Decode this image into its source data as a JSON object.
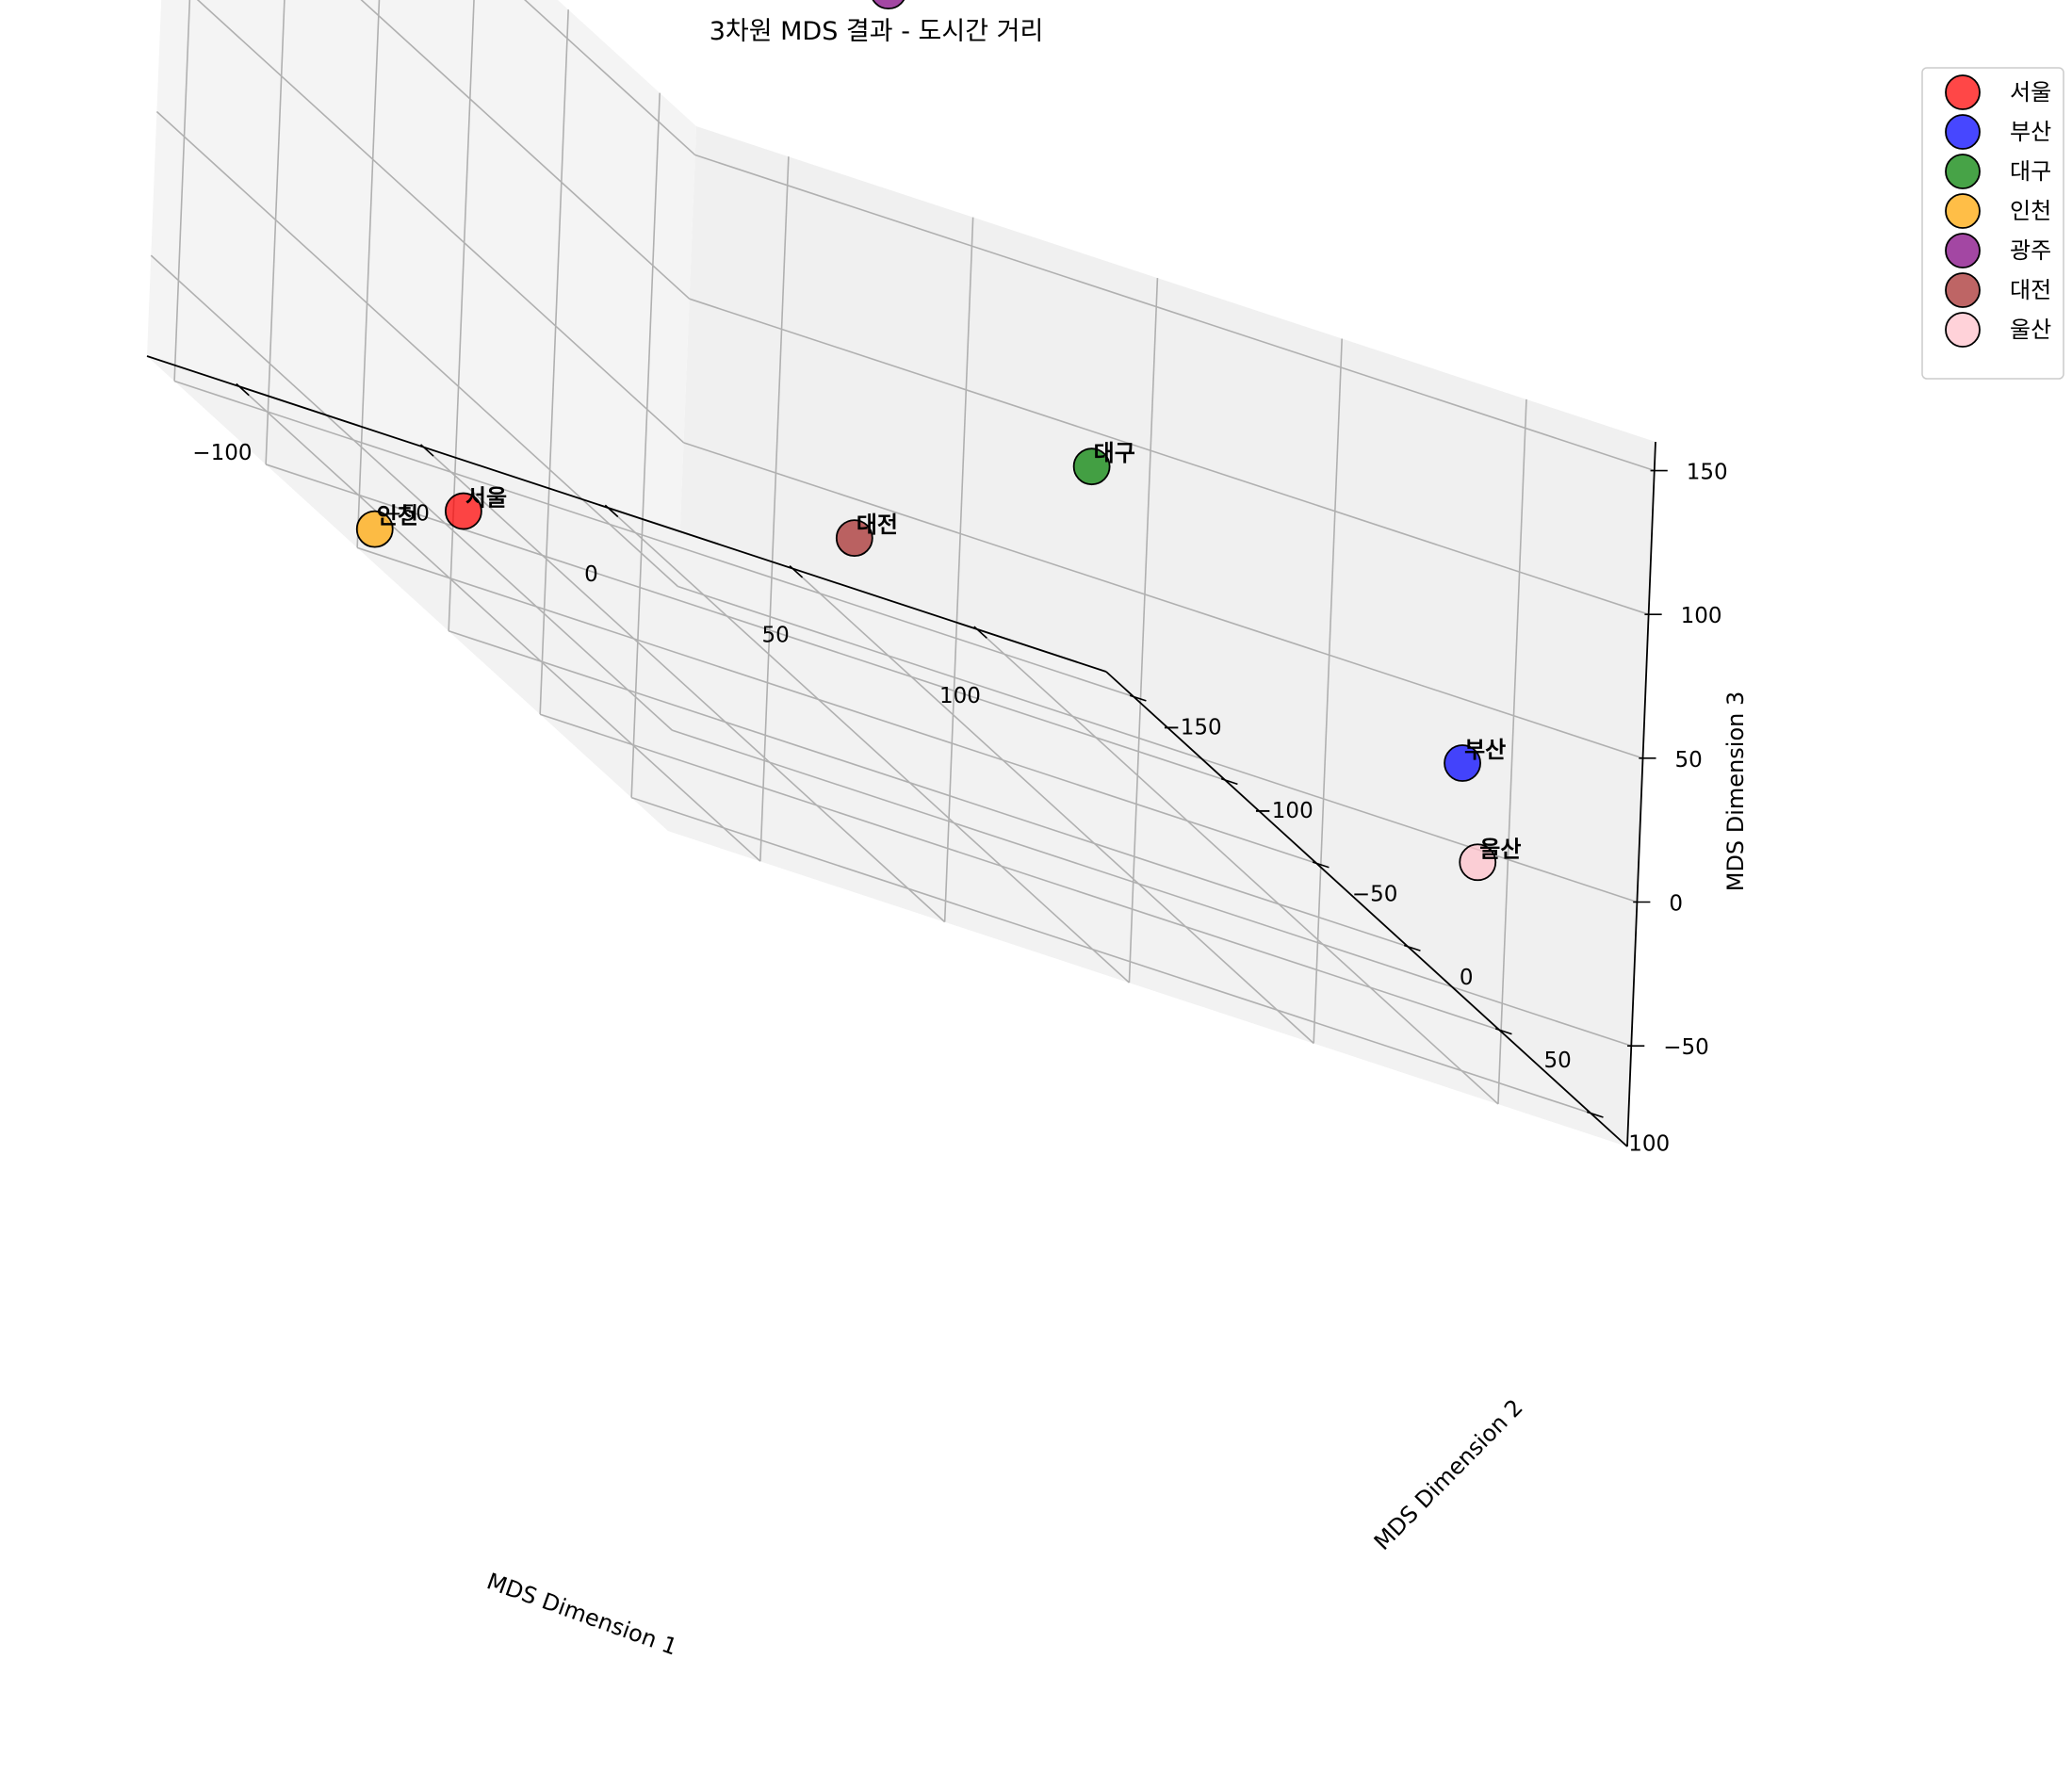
{
  "chart_data": {
    "type": "scatter3d",
    "title": "3차원 MDS 결과 - 도시간 거리",
    "xlabel": "MDS Dimension 1",
    "ylabel": "MDS Dimension 2",
    "zlabel": "MDS Dimension 3",
    "xlim": [
      -125,
      135
    ],
    "ylim": [
      -165,
      120
    ],
    "zlim": [
      -85,
      160
    ],
    "xticks": [
      -100,
      -50,
      0,
      50,
      100
    ],
    "yticks": [
      -150,
      -100,
      -50,
      0,
      50,
      100
    ],
    "zticks": [
      -50,
      0,
      50,
      100,
      150
    ],
    "xtick_labels": [
      "−100",
      "−50",
      "0",
      "50",
      "100"
    ],
    "ytick_labels": [
      "−150",
      "−100",
      "−50",
      "0",
      "50",
      "100"
    ],
    "ztick_labels": [
      "−50",
      "0",
      "50",
      "100",
      "150"
    ],
    "grid": true,
    "legend_position": "outside top-right",
    "points": [
      {
        "name": "서울",
        "color": "#ff0000",
        "x": -99,
        "y": -46,
        "z": -59
      },
      {
        "name": "부산",
        "color": "#0000ff",
        "x": 102,
        "y": 90,
        "z": 17
      },
      {
        "name": "대구",
        "color": "#008000",
        "x": 62,
        "y": -33,
        "z": 32
      },
      {
        "name": "인천",
        "color": "#ffa500",
        "x": -120,
        "y": -51,
        "z": -77
      },
      {
        "name": "광주",
        "color": "#800080",
        "x": 39,
        "y": -105,
        "z": 146
      },
      {
        "name": "대전",
        "color": "#a52a2a",
        "x": -22,
        "y": 9,
        "z": -4
      },
      {
        "name": "울산",
        "color": "#ffc0cb",
        "x": 97,
        "y": 110,
        "z": -8
      }
    ]
  }
}
